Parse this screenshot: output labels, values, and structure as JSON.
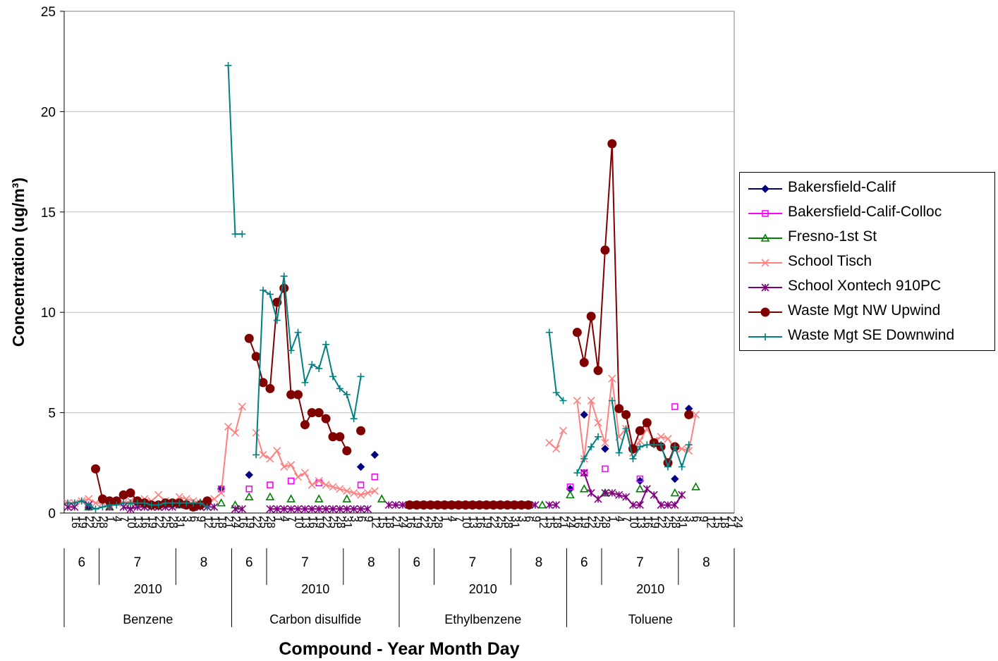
{
  "chart_data": {
    "type": "line",
    "ylabel": "Concentration (ug/m³)",
    "xlabel": "Compound - Year Month Day",
    "ylim": [
      0,
      25
    ],
    "yticks": [
      0,
      5,
      10,
      15,
      20,
      25
    ],
    "grid": "horizontal",
    "legend_position": "right",
    "groups": [
      {
        "compound": "Benzene",
        "year": "2010",
        "months": [
          {
            "month": "6",
            "days": [
              "16",
              "19",
              "22",
              "25",
              "28"
            ]
          },
          {
            "month": "7",
            "days": [
              "1",
              "4",
              "7",
              "10",
              "13",
              "16",
              "19",
              "22",
              "25",
              "28",
              "31"
            ]
          },
          {
            "month": "8",
            "days": [
              "3",
              "6",
              "9",
              "12",
              "15",
              "18",
              "21",
              "24"
            ]
          }
        ]
      },
      {
        "compound": "Carbon disulfide",
        "year": "2010",
        "months": [
          {
            "month": "6",
            "days": [
              "16",
              "19",
              "22",
              "25",
              "28"
            ]
          },
          {
            "month": "7",
            "days": [
              "1",
              "4",
              "7",
              "10",
              "13",
              "16",
              "19",
              "22",
              "25",
              "28",
              "31"
            ]
          },
          {
            "month": "8",
            "days": [
              "3",
              "6",
              "9",
              "12",
              "15",
              "18",
              "21",
              "24"
            ]
          }
        ]
      },
      {
        "compound": "Ethylbenzene",
        "year": "2010",
        "months": [
          {
            "month": "6",
            "days": [
              "16",
              "19",
              "22",
              "25",
              "28"
            ]
          },
          {
            "month": "7",
            "days": [
              "1",
              "4",
              "7",
              "10",
              "13",
              "16",
              "19",
              "22",
              "25",
              "28",
              "31"
            ]
          },
          {
            "month": "8",
            "days": [
              "3",
              "6",
              "9",
              "12",
              "15",
              "18",
              "21",
              "24"
            ]
          }
        ]
      },
      {
        "compound": "Toluene",
        "year": "2010",
        "months": [
          {
            "month": "6",
            "days": [
              "16",
              "19",
              "22",
              "25",
              "28"
            ]
          },
          {
            "month": "7",
            "days": [
              "1",
              "4",
              "7",
              "10",
              "13",
              "16",
              "19",
              "22",
              "25",
              "28",
              "31"
            ]
          },
          {
            "month": "8",
            "days": [
              "3",
              "6",
              "9",
              "12",
              "15",
              "18",
              "21",
              "24"
            ]
          }
        ]
      }
    ],
    "series": [
      {
        "name": "Bakersfield-Calif",
        "color": "#000080",
        "marker": "diamond",
        "values": [
          null,
          null,
          null,
          0.3,
          null,
          null,
          null,
          null,
          null,
          null,
          0.5,
          null,
          null,
          null,
          null,
          0.5,
          null,
          null,
          null,
          null,
          0.5,
          null,
          1.2,
          null,
          null,
          null,
          1.9,
          null,
          null,
          null,
          null,
          null,
          null,
          null,
          null,
          null,
          null,
          null,
          null,
          null,
          null,
          null,
          2.3,
          null,
          2.9,
          null,
          null,
          null,
          null,
          0.4,
          null,
          null,
          null,
          null,
          null,
          null,
          0.4,
          null,
          null,
          null,
          null,
          0.4,
          null,
          null,
          null,
          null,
          0.4,
          null,
          null,
          null,
          null,
          null,
          1.2,
          null,
          4.9,
          null,
          null,
          3.2,
          null,
          null,
          null,
          null,
          1.6,
          null,
          null,
          null,
          null,
          1.7,
          null,
          5.2,
          null
        ]
      },
      {
        "name": "Bakersfield-Calif-Colloc",
        "color": "#ff00ff",
        "marker": "square",
        "values": [
          null,
          null,
          null,
          0.3,
          null,
          null,
          null,
          null,
          null,
          null,
          0.5,
          null,
          null,
          null,
          null,
          0.5,
          null,
          null,
          null,
          null,
          0.5,
          null,
          1.2,
          null,
          null,
          null,
          1.2,
          null,
          null,
          1.4,
          null,
          null,
          1.6,
          null,
          null,
          null,
          1.5,
          null,
          null,
          null,
          null,
          null,
          1.4,
          null,
          1.8,
          null,
          null,
          null,
          null,
          0.4,
          null,
          null,
          null,
          null,
          null,
          null,
          0.4,
          null,
          null,
          null,
          null,
          0.4,
          null,
          null,
          null,
          null,
          0.4,
          null,
          null,
          null,
          null,
          null,
          1.3,
          null,
          2.0,
          null,
          null,
          2.2,
          null,
          null,
          null,
          null,
          1.7,
          null,
          null,
          null,
          null,
          5.3,
          null,
          4.9,
          null
        ]
      },
      {
        "name": "Fresno-1st St",
        "color": "#008000",
        "marker": "triangle",
        "values": [
          null,
          null,
          null,
          0.3,
          null,
          null,
          0.3,
          null,
          null,
          0.4,
          null,
          null,
          null,
          0.4,
          null,
          null,
          0.4,
          null,
          null,
          0.5,
          null,
          null,
          0.5,
          null,
          0.4,
          null,
          0.8,
          null,
          null,
          0.8,
          null,
          null,
          0.7,
          null,
          null,
          null,
          0.7,
          null,
          null,
          null,
          0.7,
          null,
          null,
          null,
          null,
          0.7,
          null,
          null,
          null,
          0.4,
          null,
          null,
          0.4,
          null,
          null,
          null,
          null,
          0.4,
          null,
          null,
          null,
          0.4,
          null,
          null,
          null,
          null,
          0.4,
          null,
          0.4,
          null,
          null,
          null,
          0.9,
          null,
          1.2,
          null,
          null,
          1.0,
          null,
          null,
          null,
          null,
          1.2,
          null,
          null,
          null,
          null,
          1.0,
          null,
          null,
          1.3
        ]
      },
      {
        "name": "School Tisch",
        "color": "#ff8080",
        "marker": "x",
        "values": [
          0.5,
          0.5,
          0.6,
          0.7,
          0.5,
          0.5,
          0.5,
          0.6,
          0.5,
          0.6,
          0.5,
          0.7,
          0.6,
          0.9,
          0.6,
          0.5,
          0.8,
          0.7,
          0.6,
          0.5,
          0.6,
          0.7,
          1.0,
          4.3,
          4.0,
          5.3,
          null,
          4.0,
          2.9,
          2.7,
          3.1,
          2.3,
          2.4,
          1.8,
          2.0,
          1.4,
          1.6,
          1.4,
          1.3,
          1.2,
          1.1,
          1.0,
          0.9,
          1.0,
          1.1,
          null,
          null,
          null,
          null,
          null,
          null,
          null,
          null,
          null,
          null,
          null,
          null,
          null,
          null,
          null,
          null,
          null,
          null,
          null,
          null,
          null,
          null,
          null,
          null,
          3.5,
          3.2,
          4.1,
          null,
          5.6,
          2.7,
          5.6,
          4.5,
          3.5,
          6.7,
          3.8,
          4.2,
          3.0,
          3.6,
          4.2,
          3.6,
          3.8,
          3.7,
          3.2,
          3.2,
          3.1,
          4.9
        ]
      },
      {
        "name": "School Xontech 910PC",
        "color": "#800080",
        "marker": "star",
        "values": [
          0.3,
          0.3,
          null,
          0.4,
          null,
          null,
          0.3,
          null,
          0.3,
          0.2,
          0.3,
          0.3,
          0.3,
          0.3,
          0.3,
          0.3,
          0.4,
          0.4,
          0.3,
          0.3,
          0.3,
          0.3,
          null,
          null,
          0.2,
          0.2,
          null,
          null,
          null,
          0.2,
          0.2,
          0.2,
          0.2,
          0.2,
          0.2,
          0.2,
          0.2,
          0.2,
          0.2,
          0.2,
          0.2,
          0.2,
          0.2,
          0.2,
          null,
          null,
          0.4,
          0.4,
          0.4,
          0.4,
          0.4,
          0.4,
          0.4,
          0.4,
          0.4,
          0.4,
          0.4,
          0.4,
          0.4,
          0.4,
          0.4,
          0.4,
          0.4,
          0.4,
          0.4,
          0.4,
          0.4,
          0.4,
          null,
          0.4,
          0.4,
          null,
          null,
          null,
          2.0,
          1.0,
          0.7,
          1.0,
          1.0,
          0.9,
          0.8,
          0.4,
          0.4,
          1.2,
          0.9,
          0.4,
          0.4,
          0.4,
          0.9,
          null,
          null
        ]
      },
      {
        "name": "Waste Mgt NW Upwind",
        "color": "#800000",
        "marker": "circle",
        "values": [
          null,
          null,
          null,
          null,
          2.2,
          0.7,
          0.6,
          0.6,
          0.9,
          1.0,
          0.6,
          0.5,
          0.4,
          0.4,
          0.5,
          0.5,
          0.5,
          0.4,
          0.3,
          0.4,
          0.6,
          null,
          null,
          null,
          null,
          null,
          8.7,
          7.8,
          6.5,
          6.2,
          10.5,
          11.2,
          5.9,
          5.9,
          4.4,
          5.0,
          5.0,
          4.7,
          3.8,
          3.8,
          3.1,
          null,
          4.1,
          null,
          null,
          null,
          null,
          null,
          null,
          0.4,
          0.4,
          0.4,
          0.4,
          0.4,
          0.4,
          0.4,
          0.4,
          0.4,
          0.4,
          0.4,
          0.4,
          0.4,
          0.4,
          0.4,
          0.4,
          0.4,
          0.4,
          null,
          null,
          null,
          null,
          null,
          null,
          9.0,
          7.5,
          9.8,
          7.1,
          13.1,
          18.4,
          5.2,
          4.9,
          3.2,
          4.1,
          4.5,
          3.5,
          3.3,
          2.5,
          3.3,
          null,
          4.9,
          null
        ]
      },
      {
        "name": "Waste Mgt SE Downwind",
        "color": "#008080",
        "marker": "plus",
        "values": [
          0.5,
          0.5,
          0.6,
          0.4,
          0.2,
          0.3,
          0.4,
          0.4,
          0.5,
          0.5,
          0.5,
          0.5,
          0.4,
          0.4,
          0.5,
          0.5,
          0.5,
          0.5,
          0.5,
          0.5,
          0.3,
          null,
          null,
          22.3,
          13.9,
          13.9,
          null,
          2.9,
          11.1,
          10.9,
          9.6,
          11.8,
          8.1,
          9.0,
          6.5,
          7.4,
          7.2,
          8.4,
          6.8,
          6.2,
          5.9,
          4.7,
          6.8,
          null,
          null,
          null,
          null,
          null,
          null,
          null,
          null,
          null,
          null,
          null,
          null,
          null,
          null,
          null,
          null,
          null,
          null,
          null,
          null,
          null,
          null,
          null,
          null,
          null,
          null,
          9.0,
          6.0,
          5.6,
          null,
          2.0,
          2.7,
          3.3,
          3.8,
          null,
          5.6,
          3.0,
          4.2,
          2.7,
          3.3,
          3.4,
          3.4,
          3.4,
          2.3,
          3.3,
          2.3,
          3.4,
          null
        ]
      }
    ]
  }
}
